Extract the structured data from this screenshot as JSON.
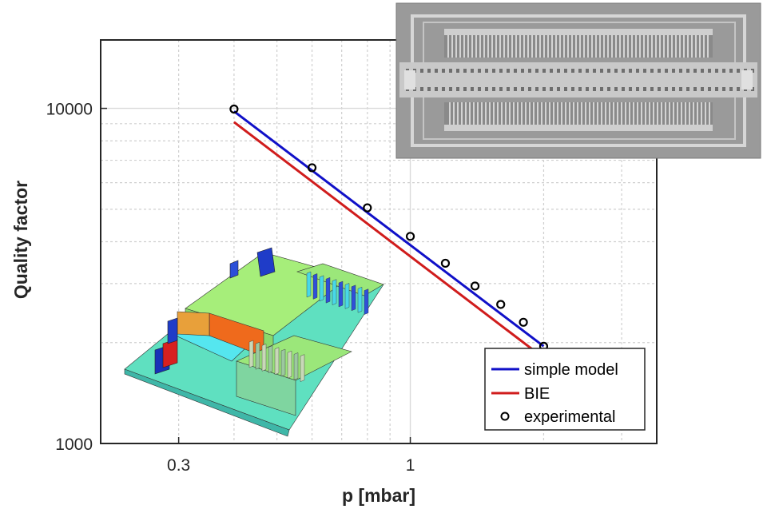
{
  "chart_data": {
    "type": "line",
    "title": "",
    "xlabel": "p [mbar]",
    "ylabel": "Quality factor",
    "x_scale": "log",
    "y_scale": "log",
    "xlim": [
      0.2,
      3.6
    ],
    "ylim": [
      1000,
      16000
    ],
    "x_tick_labels": [
      {
        "value": 0.3,
        "label": "0.3"
      },
      {
        "value": 1,
        "label": "1"
      }
    ],
    "y_tick_labels": [
      {
        "value": 1000,
        "label": "1000"
      },
      {
        "value": 10000,
        "label": "10000"
      }
    ],
    "grid": true,
    "series": [
      {
        "name": "simple model",
        "kind": "line",
        "color": "#1010c8",
        "x": [
          0.4,
          2.0
        ],
        "y": [
          9800,
          1950
        ]
      },
      {
        "name": "BIE",
        "kind": "line",
        "color": "#d01c1c",
        "x": [
          0.4,
          2.0
        ],
        "y": [
          9100,
          1800
        ]
      },
      {
        "name": "experimental",
        "kind": "marker",
        "color": "#000000",
        "x": [
          0.4,
          0.6,
          0.8,
          1.0,
          1.2,
          1.4,
          1.6,
          1.8,
          2.0
        ],
        "y": [
          9950,
          6650,
          5050,
          4150,
          3450,
          2950,
          2600,
          2300,
          1950
        ]
      }
    ],
    "legend": {
      "position": "bottom-right"
    },
    "insets": [
      {
        "name": "sem-micrograph",
        "position": "top-right"
      },
      {
        "name": "fem-simulation-3d",
        "position": "bottom-left"
      }
    ]
  }
}
